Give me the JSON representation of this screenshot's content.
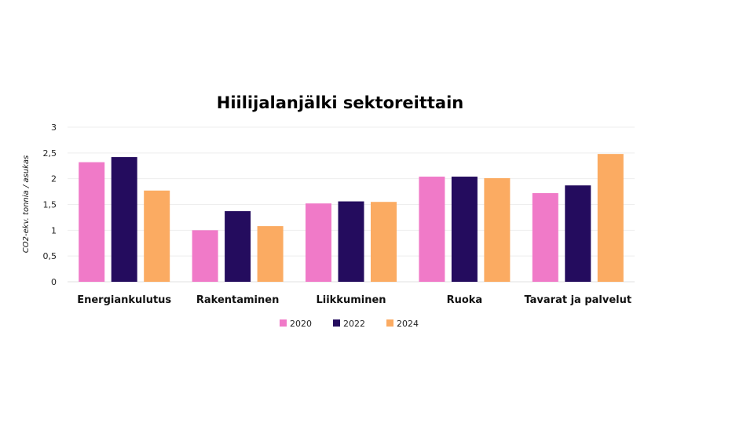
{
  "chart_data": {
    "type": "bar",
    "title": "Hiilijalanjälki sektoreittain",
    "ylabel": "CO2-ekv. tonnia / asukas",
    "xlabel": "",
    "ylim": [
      0,
      3
    ],
    "yticks": [
      "0",
      "0,5",
      "1",
      "1,5",
      "2",
      "2,5",
      "3"
    ],
    "grid": true,
    "legend_position": "bottom",
    "categories": [
      "Energiankulutus",
      "Rakentaminen",
      "Liikkuminen",
      "Ruoka",
      "Tavarat ja palvelut"
    ],
    "series": [
      {
        "name": "2020",
        "color": "#f07ac8",
        "values": [
          2.32,
          1.0,
          1.52,
          2.04,
          1.72
        ]
      },
      {
        "name": "2022",
        "color": "#240c5e",
        "values": [
          2.42,
          1.37,
          1.56,
          2.04,
          1.87
        ]
      },
      {
        "name": "2024",
        "color": "#fbab62",
        "values": [
          1.77,
          1.08,
          1.55,
          2.01,
          2.48
        ]
      }
    ]
  }
}
